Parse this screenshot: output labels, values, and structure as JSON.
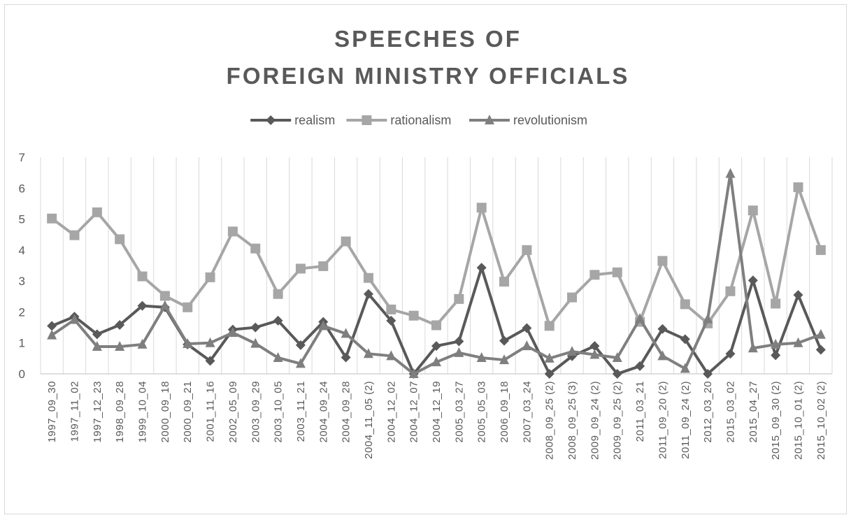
{
  "chart_data": {
    "type": "line",
    "title": [
      "SPEECHES OF",
      "FOREIGN MINISTRY OFFICIALS"
    ],
    "categories": [
      "1997_09_30",
      "1997_11_02",
      "1997_12_23",
      "1998_09_28",
      "1999_10_04",
      "2000_09_18",
      "2000_09_21",
      "2001_11_16",
      "2002_05_09",
      "2003_09_29",
      "2003_10_05",
      "2003_11_21",
      "2004_09_24",
      "2004_09_28",
      "2004_11_05 (2)",
      "2004_12_02",
      "2004_12_07",
      "2004_12_19",
      "2005_03_27",
      "2005_05_03",
      "2006_09_18",
      "2007_03_24",
      "2008_09_25 (2)",
      "2008_09_25 (3)",
      "2009_09_24 (2)",
      "2009_09_25 (2)",
      "2011_03_21",
      "2011_09_20 (2)",
      "2011_09_24 (2)",
      "2012_03_20",
      "2015_03_02",
      "2015_04_27",
      "2015_09_30 (2)",
      "2015_10_01 (2)",
      "2015_10_02 (2)"
    ],
    "series": [
      {
        "name": "realism",
        "color": "#595959",
        "marker": "diamond",
        "values": [
          1.55,
          1.85,
          1.28,
          1.58,
          2.2,
          2.15,
          0.95,
          0.42,
          1.43,
          1.5,
          1.72,
          0.93,
          1.68,
          0.53,
          2.58,
          1.72,
          0,
          0.9,
          1.05,
          3.43,
          1.07,
          1.48,
          0,
          0.57,
          0.9,
          0,
          0.25,
          1.45,
          1.12,
          0,
          0.65,
          3.02,
          0.6,
          2.55,
          0.78
        ]
      },
      {
        "name": "rationalism",
        "color": "#a6a6a6",
        "marker": "square",
        "values": [
          5.02,
          4.48,
          5.22,
          4.35,
          3.15,
          2.52,
          2.15,
          3.12,
          4.6,
          4.05,
          2.58,
          3.4,
          3.48,
          4.28,
          3.1,
          2.08,
          1.88,
          1.57,
          2.42,
          5.37,
          2.98,
          4.0,
          1.55,
          2.47,
          3.2,
          3.28,
          1.68,
          3.65,
          2.25,
          1.63,
          2.67,
          5.28,
          2.27,
          6.03,
          4.0
        ]
      },
      {
        "name": "revolutionism",
        "color": "#7f7f7f",
        "marker": "triangle",
        "values": [
          1.25,
          1.75,
          0.88,
          0.88,
          0.95,
          2.2,
          0.97,
          1.0,
          1.33,
          0.98,
          0.52,
          0.33,
          1.55,
          1.3,
          0.65,
          0.58,
          0,
          0.38,
          0.68,
          0.52,
          0.45,
          0.9,
          0.5,
          0.72,
          0.62,
          0.52,
          1.78,
          0.58,
          0.17,
          1.77,
          6.47,
          0.83,
          0.95,
          1.0,
          1.27
        ]
      }
    ],
    "ylim": [
      0,
      7
    ],
    "yticks": [
      0,
      1,
      2,
      3,
      4,
      5,
      6,
      7
    ],
    "xgrid": true,
    "legend": "top"
  }
}
